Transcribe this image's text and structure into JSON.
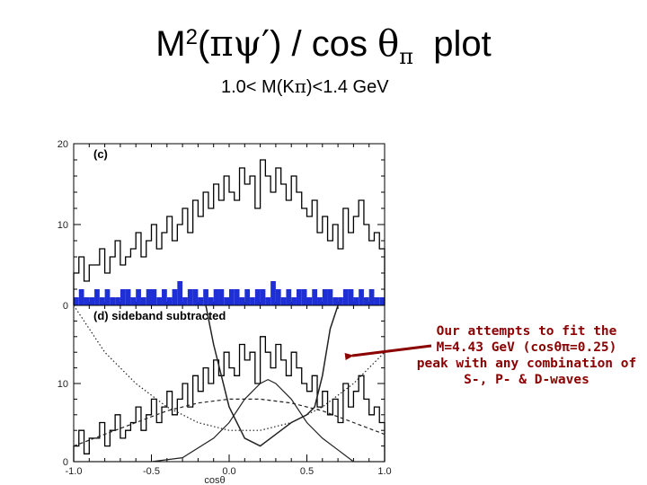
{
  "title": {
    "prefix": "M",
    "exponent": "2",
    "open": "(",
    "particles": "πψ′",
    "close": ") / cos ",
    "theta": "θ",
    "theta_sub": "π",
    "suffix": "  plot"
  },
  "subtitle": {
    "prefix": "1.0< M(K",
    "symbol": "π",
    "suffix": ")<1.4 GeV"
  },
  "annotation": {
    "text": "Our attempts to fit the\nM=4.43 GeV (cosθπ=0.25)\npeak with any combination of\nS-, P- & D-waves"
  },
  "colors": {
    "signal": "#000000",
    "sideband": "#1e2fd6",
    "annotation": "#8b0000",
    "arrow": "#8b0000"
  },
  "chart_data": [
    {
      "type": "bar",
      "panel": "(c)",
      "xlabel": "",
      "xlim": [
        -1.0,
        1.0
      ],
      "ylim": [
        0,
        20
      ],
      "yticks": [
        0,
        10,
        20
      ],
      "series": [
        {
          "values": [
            4,
            6,
            3,
            5,
            5,
            7,
            4,
            6,
            8,
            5,
            6,
            7,
            9,
            6,
            8,
            10,
            7,
            9,
            11,
            8,
            10,
            12,
            9,
            13,
            11,
            14,
            12,
            15,
            13,
            16,
            14,
            13,
            17,
            15,
            16,
            12,
            18,
            16,
            14,
            17,
            15,
            13,
            16,
            14,
            12,
            11,
            13,
            9,
            11,
            8,
            10,
            7,
            12,
            9,
            11,
            13,
            10,
            8,
            9,
            7
          ]
        },
        {
          "values": [
            1,
            2,
            1,
            1,
            2,
            1,
            2,
            1,
            1,
            2,
            2,
            1,
            2,
            1,
            2,
            2,
            1,
            2,
            1,
            2,
            3,
            1,
            2,
            2,
            1,
            2,
            1,
            2,
            2,
            1,
            2,
            2,
            1,
            2,
            1,
            2,
            2,
            1,
            3,
            2,
            1,
            2,
            1,
            2,
            2,
            1,
            2,
            1,
            2,
            2,
            1,
            1,
            2,
            2,
            1,
            2,
            1,
            2,
            1,
            1
          ]
        }
      ]
    },
    {
      "type": "line",
      "panel": "(d) sideband subtracted",
      "xlabel": "cosθ",
      "xlim": [
        -1.0,
        1.0
      ],
      "ylim": [
        0,
        20
      ],
      "xticks": [
        "-1.0",
        "-0.5",
        "0.0",
        "0.5",
        "1.0"
      ],
      "yticks": [
        0,
        10
      ],
      "histogram": [
        2,
        4,
        1,
        3,
        3,
        5,
        2,
        4,
        6,
        3,
        4,
        5,
        7,
        4,
        6,
        8,
        5,
        7,
        9,
        6,
        8,
        10,
        7,
        11,
        9,
        12,
        10,
        13,
        11,
        14,
        12,
        11,
        15,
        13,
        14,
        10,
        16,
        14,
        12,
        15,
        13,
        11,
        14,
        12,
        10,
        9,
        11,
        7,
        9,
        6,
        8,
        5,
        10,
        7,
        9,
        11,
        8,
        6,
        7,
        5
      ],
      "fits": [
        {
          "style": "solid-steep",
          "x": [
            -0.15,
            -0.1,
            0.0,
            0.1,
            0.2,
            0.3,
            0.4,
            0.5,
            0.55,
            0.6,
            0.65,
            0.7
          ],
          "y": [
            22,
            15,
            7,
            3,
            2,
            3.5,
            5,
            6,
            7,
            11,
            17,
            22
          ]
        },
        {
          "style": "solid",
          "x": [
            -1.0,
            -0.5,
            -0.3,
            -0.1,
            0.0,
            0.1,
            0.2,
            0.25,
            0.3,
            0.4,
            0.5,
            0.6,
            0.7,
            0.8,
            1.0
          ],
          "y": [
            0,
            0,
            0.5,
            3,
            5,
            8,
            10,
            10.5,
            10,
            8,
            5,
            3,
            1.5,
            0,
            0
          ]
        },
        {
          "style": "dashed",
          "x": [
            -1.0,
            -0.8,
            -0.6,
            -0.4,
            -0.2,
            0.0,
            0.2,
            0.4,
            0.6,
            0.8,
            1.0
          ],
          "y": [
            2,
            3.5,
            5,
            6.5,
            7.5,
            8,
            8,
            7.5,
            6.5,
            5,
            3.5
          ]
        },
        {
          "style": "dotted",
          "x": [
            -1.0,
            -0.8,
            -0.6,
            -0.4,
            -0.2,
            0.0,
            0.2,
            0.4,
            0.6,
            0.8,
            1.0
          ],
          "y": [
            20,
            14,
            10,
            7,
            5,
            4,
            4,
            5,
            7,
            10,
            14
          ]
        }
      ]
    }
  ]
}
